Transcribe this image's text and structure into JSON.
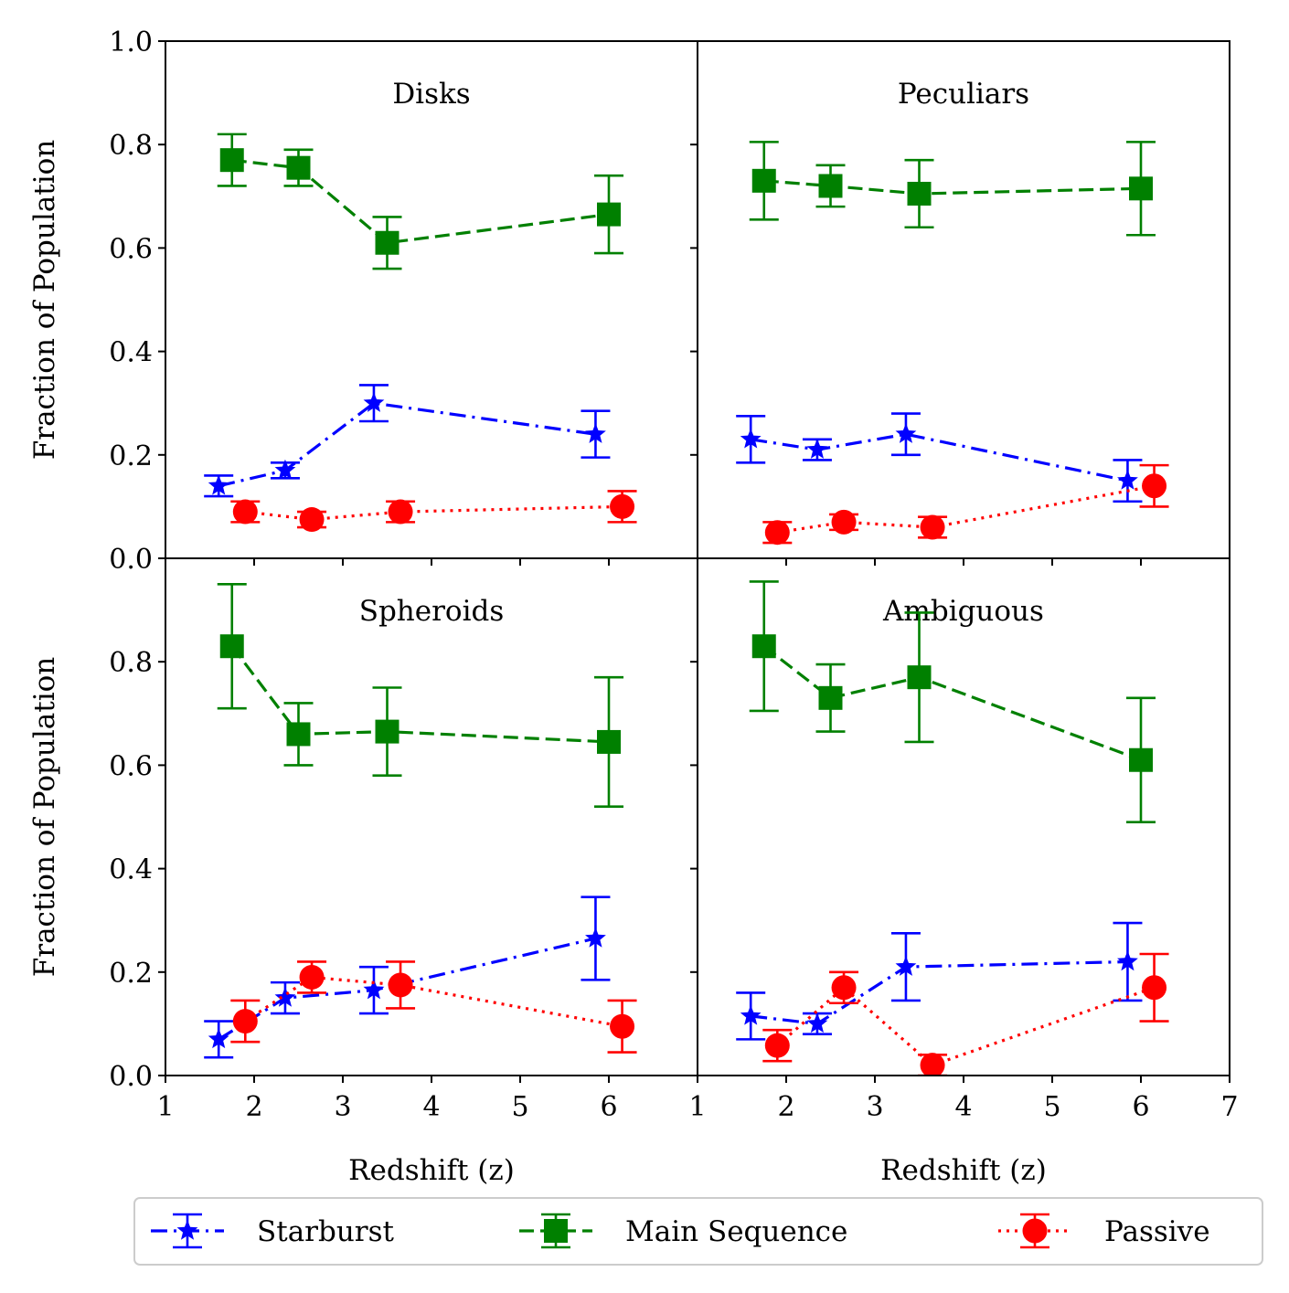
{
  "chart_data": {
    "type": "line",
    "layout": "2x2 grid, shared axes",
    "xlabel": "Redshift (z)",
    "ylabel": "Fraction of Population",
    "xlim": [
      1,
      7
    ],
    "ylim": [
      0,
      1.0
    ],
    "x_ticks": [
      "1",
      "2",
      "3",
      "4",
      "5",
      "6",
      "7"
    ],
    "y_ticks": [
      "0.0",
      "0.2",
      "0.4",
      "0.6",
      "0.8",
      "1.0"
    ],
    "series_styles": {
      "starburst": {
        "color": "#0000ff",
        "marker": "star",
        "line": "dashdot"
      },
      "main_sequence": {
        "color": "#008000",
        "marker": "square",
        "line": "dashed"
      },
      "passive": {
        "color": "#ff0000",
        "marker": "circle",
        "line": "dotted"
      }
    },
    "legend": {
      "placement": "bottom-center",
      "entries": [
        {
          "key": "starburst",
          "label": "Starburst"
        },
        {
          "key": "main_sequence",
          "label": "Main Sequence"
        },
        {
          "key": "passive",
          "label": "Passive"
        }
      ]
    },
    "panels": [
      {
        "title": "Disks",
        "series": {
          "starburst": {
            "x": [
              1.6,
              2.35,
              3.35,
              5.85
            ],
            "y": [
              0.14,
              0.17,
              0.3,
              0.24
            ],
            "err": [
              0.02,
              0.015,
              0.035,
              0.045
            ]
          },
          "main_sequence": {
            "x": [
              1.75,
              2.5,
              3.5,
              6.0
            ],
            "y": [
              0.77,
              0.755,
              0.61,
              0.665
            ],
            "err": [
              0.05,
              0.035,
              0.05,
              0.075
            ]
          },
          "passive": {
            "x": [
              1.9,
              2.65,
              3.65,
              6.15
            ],
            "y": [
              0.09,
              0.075,
              0.09,
              0.1
            ],
            "err": [
              0.02,
              0.015,
              0.02,
              0.03
            ]
          }
        }
      },
      {
        "title": "Peculiars",
        "series": {
          "starburst": {
            "x": [
              1.6,
              2.35,
              3.35,
              5.85
            ],
            "y": [
              0.23,
              0.21,
              0.24,
              0.15
            ],
            "err": [
              0.045,
              0.02,
              0.04,
              0.04
            ]
          },
          "main_sequence": {
            "x": [
              1.75,
              2.5,
              3.5,
              6.0
            ],
            "y": [
              0.73,
              0.72,
              0.705,
              0.715
            ],
            "err": [
              0.075,
              0.04,
              0.065,
              0.09
            ]
          },
          "passive": {
            "x": [
              1.9,
              2.65,
              3.65,
              6.15
            ],
            "y": [
              0.05,
              0.07,
              0.06,
              0.14
            ],
            "err": [
              0.02,
              0.015,
              0.02,
              0.04
            ]
          }
        }
      },
      {
        "title": "Spheroids",
        "series": {
          "starburst": {
            "x": [
              1.6,
              2.35,
              3.35,
              5.85
            ],
            "y": [
              0.07,
              0.15,
              0.165,
              0.265
            ],
            "err": [
              0.035,
              0.03,
              0.045,
              0.08
            ]
          },
          "main_sequence": {
            "x": [
              1.75,
              2.5,
              3.5,
              6.0
            ],
            "y": [
              0.83,
              0.66,
              0.665,
              0.645
            ],
            "err": [
              0.12,
              0.06,
              0.085,
              0.125
            ]
          },
          "passive": {
            "x": [
              1.9,
              2.65,
              3.65,
              6.15
            ],
            "y": [
              0.105,
              0.19,
              0.175,
              0.095
            ],
            "err": [
              0.04,
              0.03,
              0.045,
              0.05
            ]
          }
        }
      },
      {
        "title": "Ambiguous",
        "series": {
          "starburst": {
            "x": [
              1.6,
              2.35,
              3.35,
              5.85
            ],
            "y": [
              0.115,
              0.1,
              0.21,
              0.22
            ],
            "err": [
              0.045,
              0.02,
              0.065,
              0.075
            ]
          },
          "main_sequence": {
            "x": [
              1.75,
              2.5,
              3.5,
              6.0
            ],
            "y": [
              0.83,
              0.73,
              0.77,
              0.61
            ],
            "err": [
              0.125,
              0.065,
              0.125,
              0.12
            ]
          },
          "passive": {
            "x": [
              1.9,
              2.65,
              3.65,
              6.15
            ],
            "y": [
              0.058,
              0.17,
              0.02,
              0.17
            ],
            "err": [
              0.03,
              0.03,
              0.02,
              0.065
            ]
          }
        }
      }
    ]
  }
}
